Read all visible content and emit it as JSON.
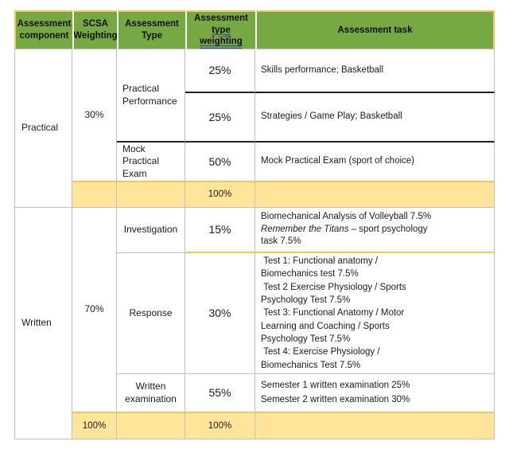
{
  "colors": {
    "header_green": "#76A944",
    "total_row_yellow": "#FFE499",
    "gold_accent_border": "#F2C75B",
    "grid_gray": "#C0C0C0",
    "underline_blue": "#2E3CB8"
  },
  "header": {
    "assessment_component": "Assessment component",
    "scsa_weighting": "SCSA Weighting",
    "assessment_type": "Assessment Type",
    "type_weighting_prefix": "Assessment ",
    "type_weighting_underlined": "type weighting",
    "assessment_task": "Assessment task"
  },
  "practical": {
    "component": "Practical",
    "scsa": "30%",
    "practical_performance": {
      "type": "Practical\nPerformance",
      "row1": {
        "pct": "25%",
        "task": "Skills performance; Basketball"
      },
      "row2": {
        "pct": "25%",
        "task": "Strategies / Game Play; Basketball"
      }
    },
    "mock": {
      "type": "Mock Practical\nExam",
      "pct": "50%",
      "task": "Mock Practical Exam (sport of choice)"
    },
    "total_pct": "100%"
  },
  "written": {
    "component": "Written",
    "scsa": "70%",
    "investigation": {
      "type": "Investigation",
      "pct": "15%",
      "task_line1": "Biomechanical Analysis of Volleyball 7.5%",
      "task_italic": "Remember the Titans",
      "task_rest": " – sport psychology\ntask 7.5%"
    },
    "response": {
      "type": "Response",
      "pct": "30%",
      "task": " Test 1: Functional anatomy /\nBiomechanics test 7.5%\n Test 2 Exercise Physiology / Sports\nPsychology Test 7.5%\n Test 3: Functional Anatomy / Motor\nLearning and Coaching / Sports\nPsychology Test 7.5%\n Test 4: Exercise Physiology /\nBiomechanics Test 7.5%"
    },
    "written_exam": {
      "type": "Written\nexamination",
      "pct": "55%",
      "task": "Semester 1 written examination 25%\nSemester 2 written examination 30%"
    },
    "total_scsa": "100%",
    "total_pct": "100%"
  }
}
